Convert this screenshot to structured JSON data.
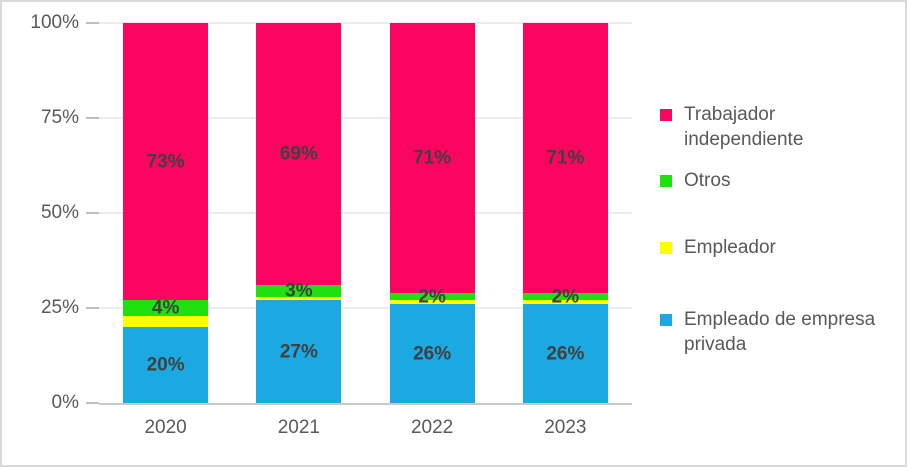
{
  "canvas": {
    "background": "#FFFFFF",
    "border_color": "#D9D9D9"
  },
  "chart_data": {
    "type": "bar",
    "variant": "stacked-100-percent-column",
    "title": "",
    "categories": [
      "2020",
      "2021",
      "2022",
      "2023"
    ],
    "series": [
      {
        "name": "Empleado de empresa privada",
        "color": "#1CA8E0",
        "values": [
          20,
          27,
          26,
          26
        ],
        "data_labels": [
          "20%",
          "27%",
          "26%",
          "26%"
        ]
      },
      {
        "name": "Empleador",
        "color": "#FFFF00",
        "values": [
          3,
          1,
          1,
          1
        ],
        "data_labels": [
          "",
          "",
          "",
          ""
        ]
      },
      {
        "name": "Otros",
        "color": "#1EE10F",
        "values": [
          4,
          3,
          2,
          2
        ],
        "data_labels": [
          "4%",
          "3%",
          "2%",
          "2%"
        ]
      },
      {
        "name": "Trabajador independiente",
        "color": "#FA055F",
        "values": [
          73,
          69,
          71,
          71
        ],
        "data_labels": [
          "73%",
          "69%",
          "71%",
          "71%"
        ]
      }
    ],
    "y_axis": {
      "ticks": [
        "0%",
        "25%",
        "50%",
        "75%",
        "100%"
      ],
      "min": 0,
      "max": 100
    },
    "x_axis": {
      "labels": [
        "2020",
        "2021",
        "2022",
        "2023"
      ]
    },
    "grid": true,
    "legend": {
      "position": "right",
      "items": [
        {
          "label": "Trabajador independiente",
          "color": "#FA055F"
        },
        {
          "label": "Otros",
          "color": "#1EE10F"
        },
        {
          "label": "Empleador",
          "color": "#FFFF00"
        },
        {
          "label": "Empleado de empresa privada",
          "color": "#1CA8E0"
        }
      ]
    },
    "style_colors": {
      "gridline": "#D9D9D9",
      "axis_line": "#C9C9C9",
      "tick": "#BFBFBF",
      "axis_text": "#595959",
      "data_label_text": "#404040"
    }
  }
}
